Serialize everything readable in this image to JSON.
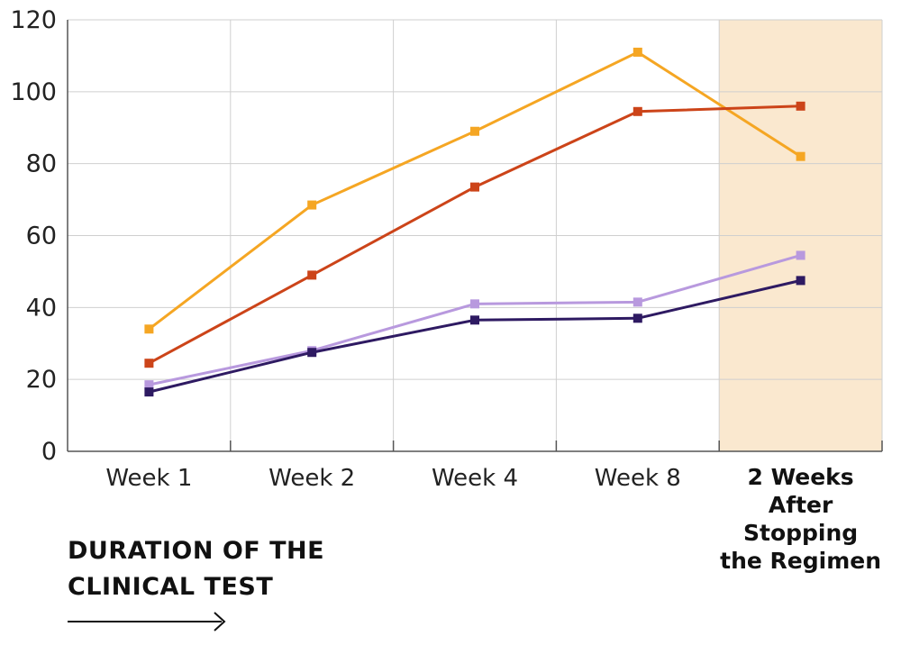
{
  "chart_data": {
    "type": "line",
    "categories": [
      "Week 1",
      "Week 2",
      "Week 4",
      "Week 8",
      "2 Weeks After Stopping the Regimen"
    ],
    "highlight_category_lines": [
      "2 Weeks",
      "After",
      "Stopping",
      "the Regimen"
    ],
    "highlight_index": 4,
    "y_ticks": [
      "0",
      "20",
      "40",
      "60",
      "80",
      "100",
      "120"
    ],
    "ylim": [
      0,
      120
    ],
    "grid": true,
    "series": [
      {
        "color": "#F5A623",
        "values": [
          34,
          68.5,
          89,
          111,
          82
        ]
      },
      {
        "color": "#CC4419",
        "values": [
          24.5,
          49,
          73.5,
          94.5,
          96
        ]
      },
      {
        "color": "#B899DE",
        "values": [
          18.5,
          28,
          41,
          41.5,
          54.5
        ]
      },
      {
        "color": "#2E1A62",
        "values": [
          16.5,
          27.5,
          36.5,
          37,
          47.5
        ]
      }
    ]
  },
  "caption": {
    "line1": "DURATION OF THE",
    "line2": "CLINICAL TEST"
  },
  "colors": {
    "highlight_band": "#FAE8CF",
    "grid": "#CFCFCF",
    "axis": "#555555"
  },
  "icons": {
    "caption_arrow": "right-arrow-icon"
  }
}
